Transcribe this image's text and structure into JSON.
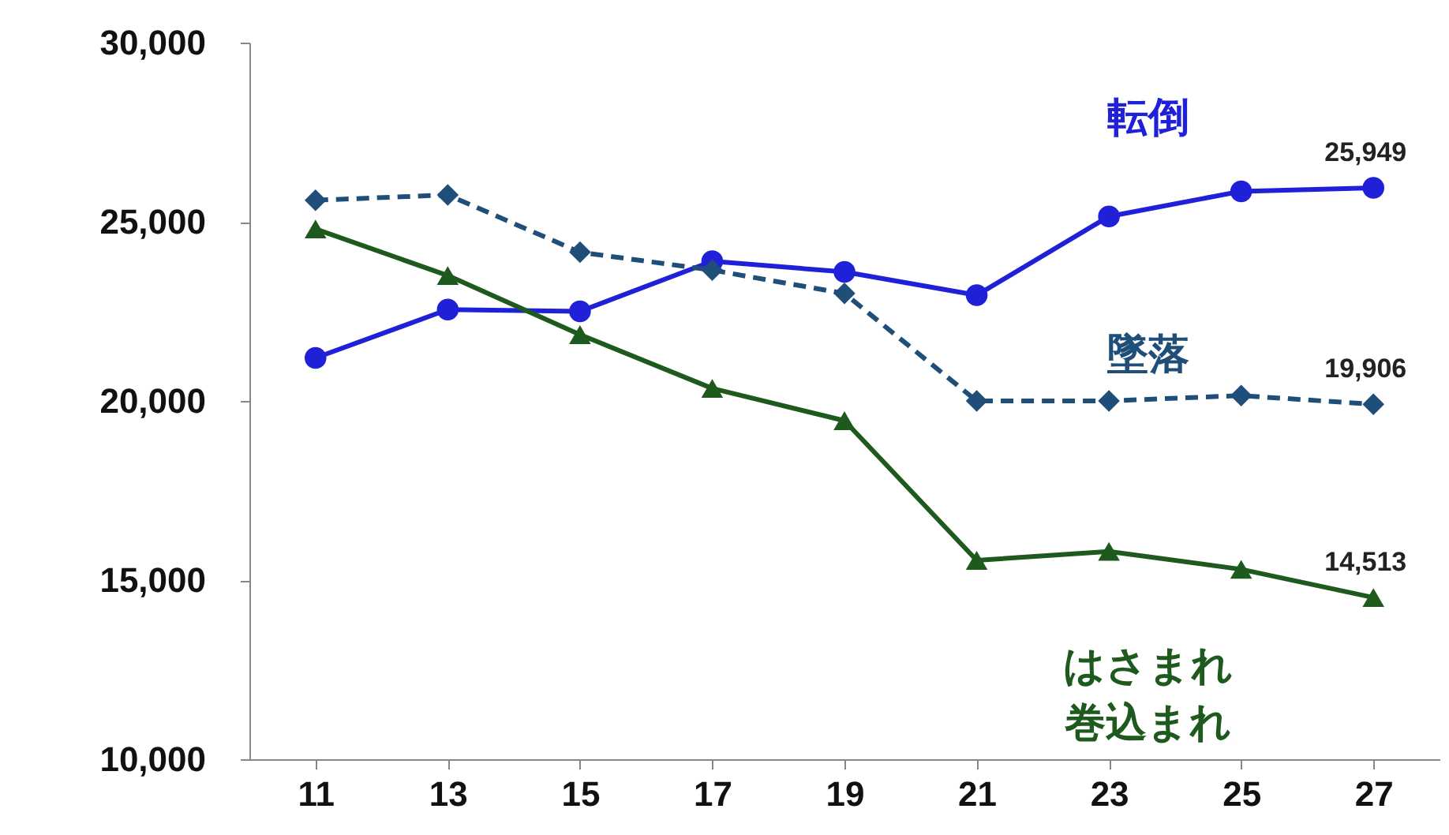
{
  "chart_data": {
    "type": "line",
    "categories": [
      "11",
      "13",
      "15",
      "17",
      "19",
      "21",
      "23",
      "25",
      "27"
    ],
    "ylim": [
      10000,
      30000
    ],
    "yticks": [
      {
        "value": 10000,
        "label": "10,000"
      },
      {
        "value": 15000,
        "label": "15,000"
      },
      {
        "value": 20000,
        "label": "20,000"
      },
      {
        "value": 25000,
        "label": "25,000"
      },
      {
        "value": 30000,
        "label": "30,000"
      }
    ],
    "grid": false,
    "legend": false,
    "series": [
      {
        "name": "転倒",
        "color": "#2020d8",
        "marker": "circle",
        "line_style": "solid",
        "values": [
          21200,
          22550,
          22500,
          23900,
          23600,
          22950,
          25150,
          25850,
          25949
        ],
        "value_labels": [
          null,
          null,
          null,
          null,
          null,
          null,
          null,
          null,
          "25,949"
        ]
      },
      {
        "name": "墜落",
        "color": "#1f4e79",
        "marker": "diamond",
        "line_style": "dashed",
        "values": [
          25600,
          25750,
          24150,
          23650,
          23000,
          20000,
          20000,
          20150,
          19906
        ],
        "value_labels": [
          null,
          null,
          null,
          null,
          null,
          null,
          null,
          null,
          "19,906"
        ]
      },
      {
        "name": "はさまれ巻込まれ",
        "color": "#1e5a1e",
        "marker": "triangle",
        "line_style": "solid",
        "values": [
          24800,
          23500,
          21850,
          20350,
          19450,
          15550,
          15800,
          15300,
          14513
        ],
        "value_labels": [
          null,
          null,
          null,
          null,
          null,
          null,
          null,
          null,
          "14,513"
        ]
      }
    ]
  }
}
